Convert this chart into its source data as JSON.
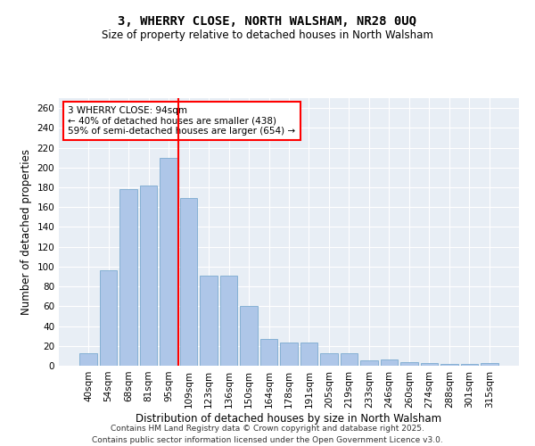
{
  "title1": "3, WHERRY CLOSE, NORTH WALSHAM, NR28 0UQ",
  "title2": "Size of property relative to detached houses in North Walsham",
  "xlabel": "Distribution of detached houses by size in North Walsham",
  "ylabel": "Number of detached properties",
  "categories": [
    "40sqm",
    "54sqm",
    "68sqm",
    "81sqm",
    "95sqm",
    "109sqm",
    "123sqm",
    "136sqm",
    "150sqm",
    "164sqm",
    "178sqm",
    "191sqm",
    "205sqm",
    "219sqm",
    "233sqm",
    "246sqm",
    "260sqm",
    "274sqm",
    "288sqm",
    "301sqm",
    "315sqm"
  ],
  "values": [
    13,
    96,
    178,
    182,
    210,
    169,
    91,
    91,
    60,
    27,
    23,
    23,
    13,
    13,
    5,
    6,
    4,
    3,
    2,
    2,
    3
  ],
  "bar_color": "#aec6e8",
  "bar_edge_color": "#7aaad0",
  "vline_x": 4.5,
  "vline_color": "red",
  "annotation_text": "3 WHERRY CLOSE: 94sqm\n← 40% of detached houses are smaller (438)\n59% of semi-detached houses are larger (654) →",
  "annotation_box_color": "white",
  "annotation_box_edge": "red",
  "ylim": [
    0,
    270
  ],
  "yticks": [
    0,
    20,
    40,
    60,
    80,
    100,
    120,
    140,
    160,
    180,
    200,
    220,
    240,
    260
  ],
  "bg_color": "#e8eef5",
  "footer": "Contains HM Land Registry data © Crown copyright and database right 2025.\nContains public sector information licensed under the Open Government Licence v3.0."
}
